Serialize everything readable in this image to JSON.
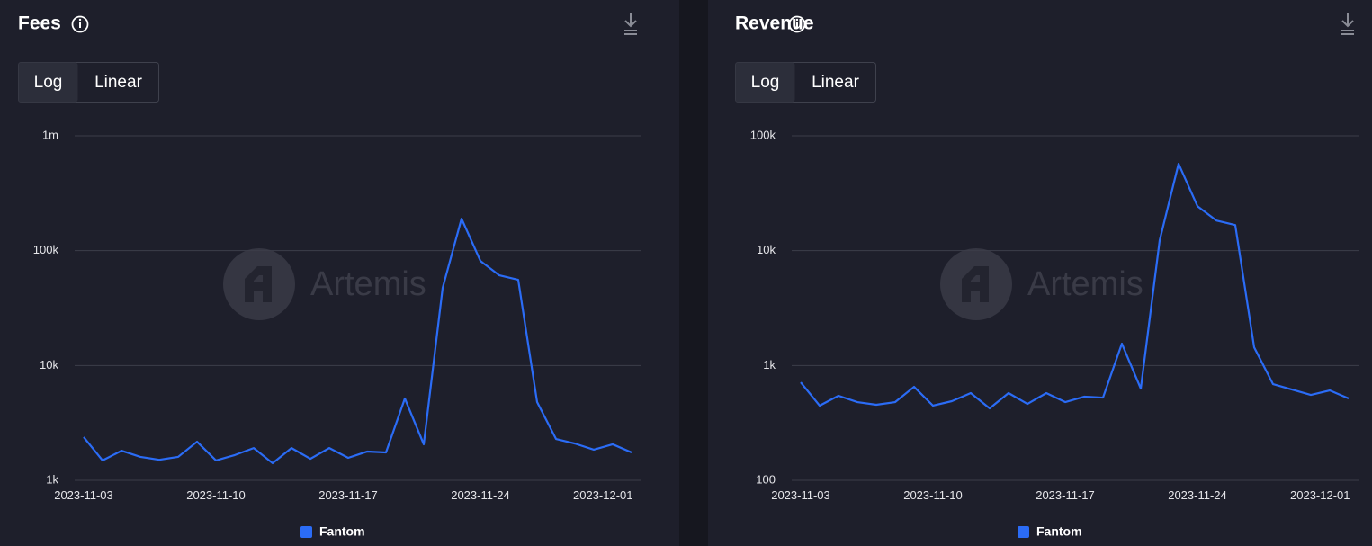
{
  "chart_data": [
    {
      "type": "line",
      "title": "Fees",
      "scale_options": [
        "Log",
        "Linear"
      ],
      "selected_scale": "Log",
      "log_scale": true,
      "grid": true,
      "watermark": "Artemis",
      "categories": [
        "2023-11-03",
        "2023-11-04",
        "2023-11-05",
        "2023-11-06",
        "2023-11-07",
        "2023-11-08",
        "2023-11-09",
        "2023-11-10",
        "2023-11-11",
        "2023-11-12",
        "2023-11-13",
        "2023-11-14",
        "2023-11-15",
        "2023-11-16",
        "2023-11-17",
        "2023-11-18",
        "2023-11-19",
        "2023-11-20",
        "2023-11-21",
        "2023-11-22",
        "2023-11-23",
        "2023-11-24",
        "2023-11-25",
        "2023-11-26",
        "2023-11-27",
        "2023-11-28",
        "2023-11-29",
        "2023-11-30",
        "2023-12-01",
        "2023-12-02"
      ],
      "series": [
        {
          "name": "Fantom",
          "color": "#2b6cf6",
          "values": [
            2380,
            1490,
            1810,
            1600,
            1510,
            1600,
            2170,
            1490,
            1660,
            1910,
            1410,
            1910,
            1540,
            1910,
            1570,
            1780,
            1750,
            5160,
            2060,
            47400,
            190000,
            81400,
            61000,
            55700,
            4800,
            2290,
            2090,
            1850,
            2060,
            1750
          ]
        }
      ],
      "ylim": [
        1000,
        1000000
      ],
      "yticks": [
        {
          "value": 1000,
          "label": "1k"
        },
        {
          "value": 10000,
          "label": "10k"
        },
        {
          "value": 100000,
          "label": "100k"
        },
        {
          "value": 1000000,
          "label": "1m"
        }
      ]
    },
    {
      "type": "line",
      "title": "Revenue",
      "scale_options": [
        "Log",
        "Linear"
      ],
      "selected_scale": "Log",
      "log_scale": true,
      "grid": true,
      "watermark": "Artemis",
      "categories": [
        "2023-11-03",
        "2023-11-04",
        "2023-11-05",
        "2023-11-06",
        "2023-11-07",
        "2023-11-08",
        "2023-11-09",
        "2023-11-10",
        "2023-11-11",
        "2023-11-12",
        "2023-11-13",
        "2023-11-14",
        "2023-11-15",
        "2023-11-16",
        "2023-11-17",
        "2023-11-18",
        "2023-11-19",
        "2023-11-20",
        "2023-11-21",
        "2023-11-22",
        "2023-11-23",
        "2023-11-24",
        "2023-11-25",
        "2023-11-26",
        "2023-11-27",
        "2023-11-28",
        "2023-11-29",
        "2023-11-30",
        "2023-12-01",
        "2023-12-02"
      ],
      "series": [
        {
          "name": "Fantom",
          "color": "#2b6cf6",
          "values": [
            714,
            447,
            545,
            480,
            455,
            480,
            652,
            447,
            489,
            575,
            423,
            575,
            463,
            575,
            480,
            535,
            525,
            1550,
            629,
            12300,
            57100,
            24400,
            18300,
            16700,
            1440,
            688,
            618,
            554,
            607,
            516
          ]
        }
      ],
      "ylim": [
        100,
        100000
      ],
      "yticks": [
        100,
        {
          "value": 1000,
          "label": "1k"
        },
        {
          "value": 10000,
          "label": "10k"
        },
        {
          "value": 100000,
          "label": "100k"
        }
      ]
    }
  ]
}
